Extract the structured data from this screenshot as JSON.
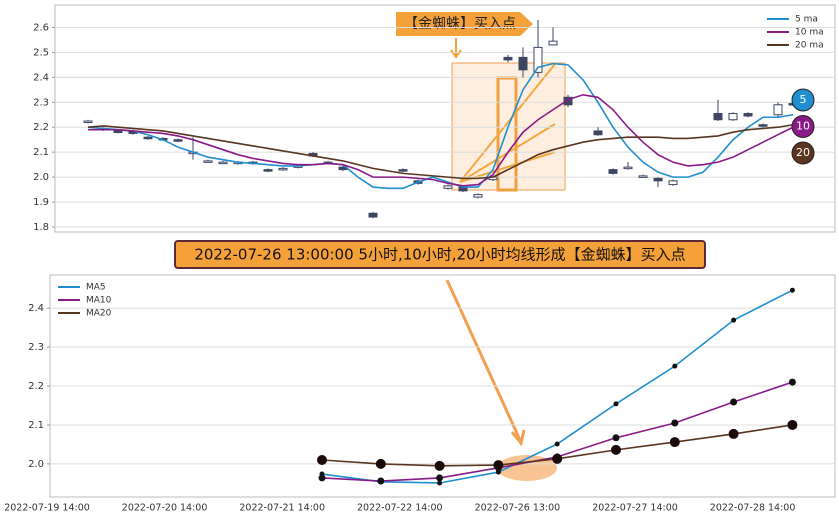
{
  "chart_data": [
    {
      "type": "candlestick",
      "annotation": "【金蜘蛛】买入点",
      "badges": [
        "5",
        "10",
        "20"
      ],
      "categories": [
        null,
        null,
        null,
        null,
        null,
        null,
        null,
        null,
        null,
        null,
        null,
        null,
        null,
        null,
        null,
        null,
        null,
        null,
        null,
        null,
        null,
        null,
        null,
        null,
        null,
        null,
        null,
        null,
        null,
        null,
        null,
        null,
        null,
        null,
        null,
        null,
        null,
        null,
        null,
        null,
        null,
        null,
        null,
        null,
        null,
        null,
        null,
        null
      ],
      "open": [
        2.22,
        2.195,
        2.185,
        2.185,
        2.16,
        2.155,
        2.15,
        2.1,
        2.065,
        2.06,
        2.055,
        2.06,
        2.03,
        2.03,
        2.04,
        2.095,
        2.06,
        2.04,
        null,
        1.855,
        null,
        2.03,
        1.985,
        null,
        1.955,
        1.96,
        1.92,
        1.99,
        2.48,
        2.48,
        2.42,
        2.53,
        2.32,
        null,
        2.185,
        2.03,
        2.035,
        2.005,
        1.995,
        1.97,
        null,
        null,
        2.255,
        2.23,
        2.255,
        2.21,
        2.25,
        2.295
      ],
      "close": [
        2.225,
        2.19,
        2.18,
        2.175,
        2.155,
        2.15,
        2.145,
        2.1,
        2.065,
        2.06,
        2.06,
        2.055,
        2.025,
        2.035,
        2.045,
        2.085,
        2.055,
        2.03,
        null,
        1.84,
        null,
        2.025,
        1.975,
        null,
        1.965,
        1.945,
        1.93,
        2.0,
        2.47,
        2.43,
        2.52,
        2.545,
        2.29,
        null,
        2.17,
        2.015,
        2.04,
        2.005,
        1.985,
        1.985,
        null,
        null,
        2.23,
        2.255,
        2.245,
        2.205,
        2.29,
        2.29
      ],
      "high": [
        2.23,
        2.2,
        2.19,
        2.19,
        2.165,
        2.16,
        2.155,
        2.16,
        2.07,
        2.065,
        2.065,
        2.065,
        2.035,
        2.04,
        2.05,
        2.1,
        2.065,
        2.045,
        null,
        1.86,
        null,
        2.035,
        1.99,
        null,
        1.97,
        1.965,
        1.935,
        2.005,
        2.49,
        2.52,
        2.63,
        2.6,
        2.33,
        null,
        2.2,
        2.035,
        2.06,
        2.01,
        2.0,
        1.99,
        null,
        null,
        2.31,
        2.26,
        2.26,
        2.215,
        2.3,
        2.3
      ],
      "low": [
        2.215,
        2.185,
        2.175,
        2.17,
        2.15,
        2.145,
        2.14,
        2.07,
        2.06,
        2.055,
        2.05,
        2.05,
        2.02,
        2.025,
        2.035,
        2.08,
        2.05,
        2.025,
        null,
        1.835,
        null,
        2.02,
        1.97,
        null,
        1.95,
        1.94,
        1.915,
        1.985,
        2.46,
        2.4,
        2.4,
        2.53,
        2.28,
        null,
        2.165,
        2.01,
        2.03,
        2.0,
        1.96,
        1.965,
        null,
        null,
        2.225,
        2.225,
        2.24,
        2.2,
        2.24,
        2.285
      ],
      "up_color": "#ffffff",
      "down_color": "#3c4663",
      "series": [
        {
          "name": "5 ma",
          "color": "#1f8fcf",
          "values": [
            2.2,
            2.195,
            2.19,
            2.185,
            2.17,
            2.15,
            2.12,
            2.1,
            2.08,
            2.07,
            2.06,
            2.055,
            2.05,
            2.045,
            2.045,
            2.05,
            2.055,
            2.05,
            2.0,
            1.96,
            1.955,
            1.955,
            1.98,
            2.0,
            1.98,
            1.96,
            1.96,
            2.03,
            2.2,
            2.35,
            2.44,
            2.455,
            2.45,
            2.39,
            2.3,
            2.2,
            2.12,
            2.06,
            2.02,
            2.0,
            2.0,
            2.02,
            2.08,
            2.15,
            2.2,
            2.24,
            2.24,
            2.25
          ]
        },
        {
          "name": "10 ma",
          "color": "#8b1a89",
          "values": [
            2.19,
            2.19,
            2.19,
            2.185,
            2.18,
            2.175,
            2.165,
            2.15,
            2.13,
            2.11,
            2.09,
            2.075,
            2.065,
            2.055,
            2.05,
            2.05,
            2.055,
            2.05,
            2.03,
            2.0,
            2.0,
            2.0,
            1.995,
            1.99,
            1.975,
            1.965,
            1.97,
            2.01,
            2.1,
            2.18,
            2.23,
            2.27,
            2.31,
            2.33,
            2.32,
            2.27,
            2.2,
            2.14,
            2.09,
            2.06,
            2.045,
            2.05,
            2.06,
            2.08,
            2.11,
            2.14,
            2.17,
            2.2
          ]
        },
        {
          "name": "20 ma",
          "color": "#5a3520",
          "values": [
            2.2,
            2.205,
            2.2,
            2.195,
            2.19,
            2.185,
            2.175,
            2.165,
            2.155,
            2.145,
            2.135,
            2.125,
            2.115,
            2.105,
            2.095,
            2.085,
            2.075,
            2.065,
            2.05,
            2.035,
            2.025,
            2.015,
            2.01,
            2.005,
            2.0,
            1.995,
            1.995,
            2.0,
            2.03,
            2.06,
            2.09,
            2.11,
            2.125,
            2.14,
            2.15,
            2.155,
            2.16,
            2.16,
            2.16,
            2.155,
            2.155,
            2.16,
            2.165,
            2.18,
            2.19,
            2.195,
            2.2,
            2.21
          ]
        }
      ],
      "ylim": [
        1.78,
        2.69
      ],
      "yticks": [
        1.8,
        1.9,
        {
          "value": 2,
          "label": "2.0"
        },
        2.1,
        2.2,
        2.3,
        2.4,
        2.5,
        2.6
      ],
      "grid": true,
      "legend": "upper right"
    },
    {
      "type": "line",
      "title": "2022-07-26 13:00:00 5小时,10小时,20小时均线形成【金蜘蛛】买入点",
      "categories": [
        null,
        null,
        null,
        null,
        null,
        null,
        null,
        null,
        null
      ],
      "xticks": [
        "2022-07-19 14:00",
        "2022-07-20 14:00",
        "2022-07-21 14:00",
        "2022-07-22 14:00",
        "2022-07-26 13:00",
        "2022-07-27 14:00",
        "2022-07-28 14:00"
      ],
      "series": [
        {
          "name": "MA5",
          "color": "#1f8fcf",
          "values": [
            1.974,
            1.954,
            1.951,
            1.979,
            2.051,
            2.154,
            2.251,
            2.369,
            2.446
          ]
        },
        {
          "name": "MA10",
          "color": "#8b1a89",
          "values": [
            1.964,
            1.956,
            1.964,
            1.99,
            2.018,
            2.067,
            2.105,
            2.159,
            2.21
          ]
        },
        {
          "name": "MA20",
          "color": "#5a3520",
          "values": [
            2.01,
            2.0,
            1.995,
            1.997,
            2.013,
            2.036,
            2.056,
            2.077,
            2.1
          ]
        }
      ],
      "ylim": [
        1.915,
        2.485
      ],
      "yticks": [
        {
          "value": 2,
          "label": "2.0"
        },
        2.1,
        2.2,
        2.3,
        2.4
      ],
      "grid": true,
      "legend": "upper left"
    }
  ]
}
